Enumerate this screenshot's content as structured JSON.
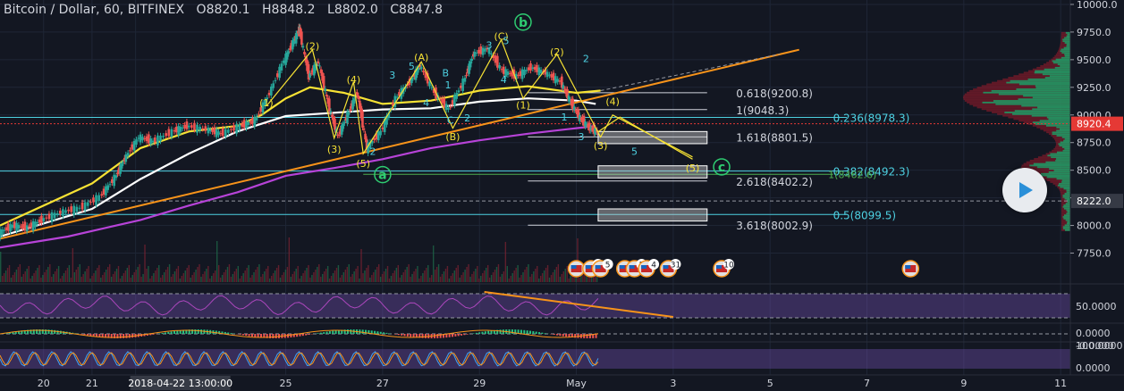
{
  "header": {
    "symbol": "Bitcoin / Dollar, 60, BITFINEX",
    "open_label": "O",
    "open": "8820.1",
    "high_label": "H",
    "high": "8848.2",
    "low_label": "L",
    "low": "8802.0",
    "close_label": "C",
    "close": "8847.8"
  },
  "chart_data": {
    "type": "line",
    "y_axis": {
      "ticks": [
        10000,
        9750,
        9500,
        9250,
        9000,
        8750,
        8500,
        8250,
        8000,
        7750
      ],
      "tick_labels": [
        "10000.0",
        "9750.0",
        "9500.0",
        "9250.0",
        "9000.0",
        "8750.0",
        "8500.0",
        "8250.0",
        "8000.0",
        "7750.0"
      ],
      "ylim": [
        7520,
        10040
      ],
      "crosshair_label": "8222.0",
      "crosshair_value": 8222,
      "last_price_label": "8920.4",
      "last_price_value": 8920.4
    },
    "x_axis": {
      "ticks": [
        {
          "label": "20",
          "t": 0
        },
        {
          "label": "21",
          "t": 1
        },
        {
          "label": "2018-04-22  13:00:00",
          "t": 1.9
        },
        {
          "label": "25",
          "t": 5
        },
        {
          "label": "27",
          "t": 7
        },
        {
          "label": "29",
          "t": 9
        },
        {
          "label": "May",
          "t": 11
        },
        {
          "label": "3",
          "t": 13
        },
        {
          "label": "5",
          "t": 15
        },
        {
          "label": "7",
          "t": 17
        },
        {
          "label": "9",
          "t": 19
        },
        {
          "label": "11",
          "t": 21
        }
      ],
      "xlim": [
        -0.9,
        21.2
      ]
    },
    "price_series": [
      [
        -0.9,
        7930
      ],
      [
        -0.6,
        8000
      ],
      [
        -0.3,
        7980
      ],
      [
        0,
        8050
      ],
      [
        0.4,
        8120
      ],
      [
        0.8,
        8160
      ],
      [
        1.2,
        8260
      ],
      [
        1.5,
        8430
      ],
      [
        1.7,
        8600
      ],
      [
        2.0,
        8800
      ],
      [
        2.3,
        8760
      ],
      [
        2.7,
        8850
      ],
      [
        3.0,
        8900
      ],
      [
        3.4,
        8870
      ],
      [
        3.7,
        8830
      ],
      [
        4.1,
        8900
      ],
      [
        4.4,
        8950
      ],
      [
        4.7,
        9200
      ],
      [
        5.0,
        9500
      ],
      [
        5.2,
        9680
      ],
      [
        5.3,
        9780
      ],
      [
        5.5,
        9350
      ],
      [
        5.7,
        9480
      ],
      [
        5.9,
        9100
      ],
      [
        6.1,
        8800
      ],
      [
        6.3,
        9000
      ],
      [
        6.5,
        9200
      ],
      [
        6.7,
        8700
      ],
      [
        7.0,
        8850
      ],
      [
        7.3,
        9150
      ],
      [
        7.6,
        9300
      ],
      [
        7.8,
        9450
      ],
      [
        8.1,
        9200
      ],
      [
        8.4,
        9050
      ],
      [
        8.7,
        9300
      ],
      [
        8.9,
        9550
      ],
      [
        9.2,
        9600
      ],
      [
        9.5,
        9400
      ],
      [
        9.8,
        9350
      ],
      [
        10.1,
        9430
      ],
      [
        10.4,
        9380
      ],
      [
        10.7,
        9300
      ],
      [
        10.9,
        9120
      ],
      [
        11.1,
        8970
      ],
      [
        11.3,
        8880
      ],
      [
        11.45,
        8847.8
      ]
    ],
    "moving_averages": [
      {
        "color": "#ffffff",
        "points": [
          [
            -0.9,
            7900
          ],
          [
            1,
            8150
          ],
          [
            2,
            8420
          ],
          [
            3,
            8650
          ],
          [
            4,
            8850
          ],
          [
            5,
            8990
          ],
          [
            6,
            9020
          ],
          [
            7,
            9050
          ],
          [
            8,
            9060
          ],
          [
            9,
            9120
          ],
          [
            10,
            9150
          ],
          [
            11,
            9130
          ],
          [
            11.4,
            9100
          ]
        ]
      },
      {
        "color": "#f7e234",
        "points": [
          [
            -0.9,
            8000
          ],
          [
            1,
            8380
          ],
          [
            2,
            8700
          ],
          [
            3,
            8850
          ],
          [
            4,
            8900
          ],
          [
            4.5,
            9000
          ],
          [
            5,
            9150
          ],
          [
            5.5,
            9250
          ],
          [
            6.2,
            9200
          ],
          [
            7,
            9100
          ],
          [
            8,
            9130
          ],
          [
            9,
            9220
          ],
          [
            10,
            9260
          ],
          [
            11,
            9200
          ],
          [
            11.5,
            9220
          ]
        ]
      },
      {
        "color": "#b743d8",
        "points": [
          [
            -0.9,
            7800
          ],
          [
            0.5,
            7900
          ],
          [
            2,
            8050
          ],
          [
            3,
            8180
          ],
          [
            4,
            8300
          ],
          [
            5,
            8450
          ],
          [
            6,
            8520
          ],
          [
            7,
            8600
          ],
          [
            8,
            8700
          ],
          [
            9,
            8770
          ],
          [
            10,
            8830
          ],
          [
            11,
            8880
          ],
          [
            11.4,
            8900
          ]
        ]
      }
    ],
    "fib_levels": [
      {
        "label": "0.236(8978.3)",
        "value": 8978.3,
        "color": "#4dd0e1"
      },
      {
        "label": "0.382(8492.3)",
        "value": 8492.3,
        "color": "#4dd0e1"
      },
      {
        "label": "0.5(8099.5)",
        "value": 8099.5,
        "color": "#4dd0e1"
      }
    ],
    "extension_levels": [
      {
        "label": "0.618(9200.8)",
        "value": 9200.8
      },
      {
        "label": "1(9048.3)",
        "value": 9048.3
      },
      {
        "label": "1.618(8801.5)",
        "value": 8801.5
      },
      {
        "label": "2.618(8402.2)",
        "value": 8402.2
      },
      {
        "label": "3.618(8002.9)",
        "value": 8002.9
      }
    ],
    "green_level": {
      "label": "1(8462.6)",
      "value": 8462.6
    },
    "target_boxes": [
      {
        "t0": 11.45,
        "t1": 13.7,
        "top": 8850,
        "bottom": 8740
      },
      {
        "t0": 11.45,
        "t1": 13.7,
        "top": 8540,
        "bottom": 8430
      },
      {
        "t0": 11.45,
        "t1": 13.7,
        "top": 8150,
        "bottom": 8040
      }
    ],
    "trendlines": [
      {
        "color": "#f7931a",
        "points": [
          [
            -0.9,
            7880
          ],
          [
            15.6,
            9590
          ]
        ]
      },
      {
        "color": "#f7931a",
        "points": [
          [
            11.5,
            9220
          ],
          [
            15.2,
            9550
          ]
        ]
      }
    ],
    "projection": [
      [
        11.45,
        8847.8
      ],
      [
        11.9,
        8980
      ],
      [
        13.4,
        8600
      ]
    ],
    "wave_labels": [
      {
        "text": "(2)",
        "t": 5.55,
        "v": 9590,
        "color": "#f7e234"
      },
      {
        "text": "(1)",
        "t": 4.6,
        "v": 9080,
        "color": "#f7e234"
      },
      {
        "text": "(4)",
        "t": 6.4,
        "v": 9290,
        "color": "#f7e234"
      },
      {
        "text": "(3)",
        "t": 6.0,
        "v": 8660,
        "color": "#f7e234"
      },
      {
        "text": "(5)",
        "t": 6.6,
        "v": 8530,
        "color": "#f7e234"
      },
      {
        "text": "(A)",
        "t": 7.8,
        "v": 9490,
        "color": "#f7e234"
      },
      {
        "text": "(B)",
        "t": 8.45,
        "v": 8770,
        "color": "#f7e234"
      },
      {
        "text": "(C)",
        "t": 9.45,
        "v": 9680,
        "color": "#f7e234"
      },
      {
        "text": "(2)",
        "t": 10.6,
        "v": 9540,
        "color": "#f7e234"
      },
      {
        "text": "(1)",
        "t": 9.9,
        "v": 9060,
        "color": "#f7e234"
      },
      {
        "text": "(4)",
        "t": 11.75,
        "v": 9090,
        "color": "#f7e234"
      },
      {
        "text": "(3)",
        "t": 11.5,
        "v": 8690,
        "color": "#f7e234"
      },
      {
        "text": "(5)",
        "t": 13.4,
        "v": 8490,
        "color": "#f7e234"
      },
      {
        "text": "3",
        "t": 7.2,
        "v": 9330,
        "color": "#4dd0e1"
      },
      {
        "text": "5",
        "t": 7.6,
        "v": 9410,
        "color": "#4dd0e1"
      },
      {
        "text": "B",
        "t": 8.3,
        "v": 9350,
        "color": "#4dd0e1"
      },
      {
        "text": "1",
        "t": 8.35,
        "v": 9240,
        "color": "#4dd0e1"
      },
      {
        "text": "4",
        "t": 7.9,
        "v": 9080,
        "color": "#4dd0e1"
      },
      {
        "text": "C",
        "t": 8.4,
        "v": 8920,
        "color": "#4dd0e1"
      },
      {
        "text": "2",
        "t": 8.75,
        "v": 8940,
        "color": "#4dd0e1"
      },
      {
        "text": "2",
        "t": 6.8,
        "v": 8640,
        "color": "#4dd0e1"
      },
      {
        "text": "3",
        "t": 9.2,
        "v": 9600,
        "color": "#4dd0e1"
      },
      {
        "text": "5",
        "t": 9.55,
        "v": 9640,
        "color": "#4dd0e1"
      },
      {
        "text": "4",
        "t": 9.5,
        "v": 9290,
        "color": "#4dd0e1"
      },
      {
        "text": "2",
        "t": 11.2,
        "v": 9480,
        "color": "#4dd0e1"
      },
      {
        "text": "1",
        "t": 10.75,
        "v": 8950,
        "color": "#4dd0e1"
      },
      {
        "text": "3",
        "t": 11.1,
        "v": 8770,
        "color": "#4dd0e1"
      },
      {
        "text": "5",
        "t": 12.2,
        "v": 8640,
        "color": "#4dd0e1"
      }
    ],
    "circle_labels": [
      {
        "text": "b",
        "t": 9.9,
        "v": 9840,
        "color": "#2ecc71"
      },
      {
        "text": "a",
        "t": 7.0,
        "v": 8460,
        "color": "#2ecc71"
      },
      {
        "text": "c",
        "t": 14.0,
        "v": 8530,
        "color": "#2ecc71"
      }
    ],
    "events": [
      {
        "t": 11.0,
        "count": ""
      },
      {
        "t": 11.3,
        "count": "7"
      },
      {
        "t": 11.5,
        "count": "5"
      },
      {
        "t": 12.0,
        "count": ""
      },
      {
        "t": 12.2,
        "count": "5"
      },
      {
        "t": 12.45,
        "count": "4"
      },
      {
        "t": 12.9,
        "count": "31"
      },
      {
        "t": 14.0,
        "count": "10"
      },
      {
        "t": 17.9,
        "count": ""
      }
    ],
    "rsi_panel": {
      "ticks": [
        "50.0000"
      ],
      "level_top": 70,
      "level_bottom": 30
    },
    "macd_panel": {
      "ticks": [
        "0.0000",
        "-0.0000"
      ]
    },
    "stoch_panel": {
      "ticks": [
        "100.0000",
        "0.0000"
      ]
    }
  },
  "colors": {
    "background": "#131722",
    "grid": "#1f2636",
    "axis_text": "#d1d4dc",
    "fib": "#4dd0e1",
    "last_price": "#e53935",
    "volume_profile_up": "#18a86b",
    "volume_profile_down": "#8c1a2b"
  },
  "icons": {
    "play": "play-icon",
    "event": "flag-event-icon"
  }
}
